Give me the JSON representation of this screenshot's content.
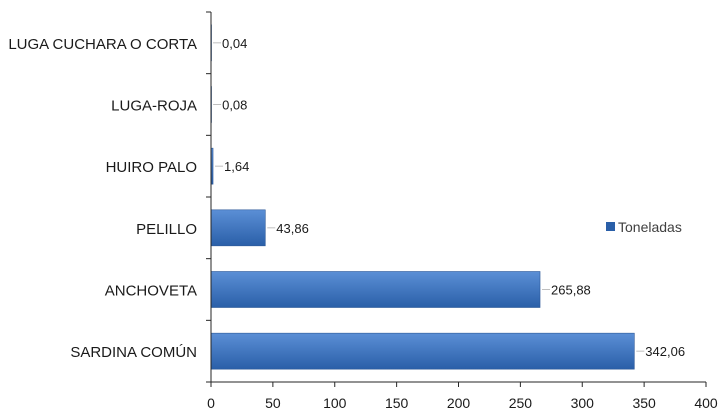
{
  "chart_data": {
    "type": "bar",
    "orientation": "horizontal",
    "categories": [
      "SARDINA COMÚN",
      "ANCHOVETA",
      "PELILLO",
      "HUIRO PALO",
      "LUGA-ROJA",
      "LUGA CUCHARA O CORTA"
    ],
    "values": [
      342.06,
      265.88,
      43.86,
      1.64,
      0.08,
      0.04
    ],
    "data_labels": [
      "342,06",
      "265,88",
      "43,86",
      "1,64",
      "0,08",
      "0,04"
    ],
    "series": [
      {
        "name": "Toneladas",
        "values": [
          342.06,
          265.88,
          43.86,
          1.64,
          0.08,
          0.04
        ]
      }
    ],
    "xlim": [
      0,
      400
    ],
    "xticks": [
      0,
      50,
      100,
      150,
      200,
      250,
      300,
      350,
      400
    ],
    "title": "",
    "xlabel": "",
    "ylabel": "",
    "grid": false,
    "legend": "right",
    "colors": {
      "bar_top": "#5b8fd6",
      "bar_bottom": "#2a5fa8",
      "bar_edge": "#2b5797"
    }
  }
}
